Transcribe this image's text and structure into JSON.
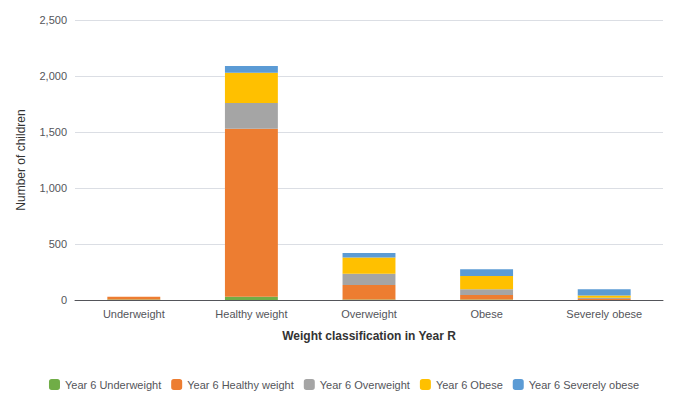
{
  "chart_data": {
    "type": "bar",
    "stacked": true,
    "categories": [
      "Underweight",
      "Healthy weight",
      "Overweight",
      "Obese",
      "Severely obese"
    ],
    "series": [
      {
        "name": "Year 6 Underweight",
        "color": "#70ad47",
        "values": [
          5,
          30,
          5,
          5,
          0
        ]
      },
      {
        "name": "Year 6 Healthy weight",
        "color": "#ed7d31",
        "values": [
          25,
          1500,
          130,
          40,
          10
        ]
      },
      {
        "name": "Year 6 Overweight",
        "color": "#a5a5a5",
        "values": [
          0,
          230,
          100,
          50,
          10
        ]
      },
      {
        "name": "Year 6 Obese",
        "color": "#ffc000",
        "values": [
          0,
          270,
          145,
          120,
          20
        ]
      },
      {
        "name": "Year 6 Severely obese",
        "color": "#5b9bd5",
        "values": [
          0,
          60,
          40,
          60,
          55
        ]
      }
    ],
    "xlabel": "Weight classification in Year R",
    "ylabel": "Number of children",
    "ylim": [
      0,
      2500
    ],
    "yticks": [
      0,
      500,
      1000,
      1500,
      2000,
      2500
    ],
    "grid": true,
    "legend": "bottom"
  }
}
